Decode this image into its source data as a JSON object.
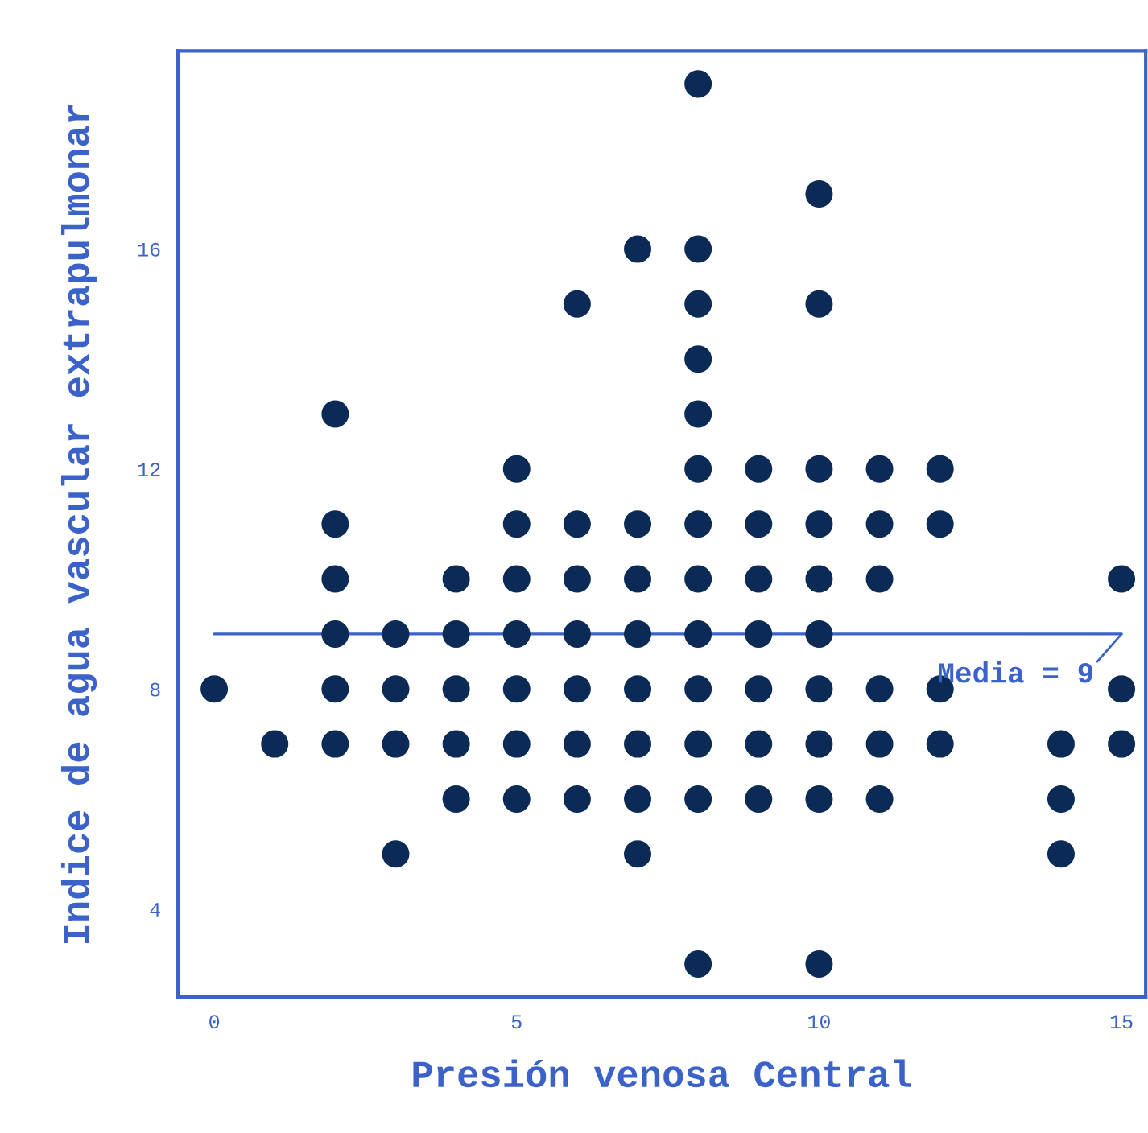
{
  "chart_data": {
    "type": "scatter",
    "xlabel": "Presión venosa Central",
    "ylabel": "Indice de agua vascular extrapulmonar",
    "x": [
      0,
      1,
      2,
      2,
      2,
      2,
      2,
      2,
      3,
      3,
      3,
      3,
      4,
      4,
      4,
      4,
      4,
      5,
      5,
      5,
      5,
      5,
      5,
      5,
      6,
      6,
      6,
      6,
      6,
      6,
      6,
      7,
      7,
      7,
      7,
      7,
      7,
      7,
      7,
      8,
      8,
      8,
      8,
      8,
      8,
      8,
      8,
      8,
      8,
      8,
      8,
      8,
      9,
      9,
      9,
      9,
      9,
      9,
      9,
      10,
      10,
      10,
      10,
      10,
      10,
      10,
      10,
      10,
      10,
      11,
      11,
      11,
      11,
      11,
      11,
      12,
      12,
      12,
      12,
      14,
      14,
      14,
      15,
      15,
      15
    ],
    "values": [
      8,
      7,
      13,
      11,
      10,
      9,
      8,
      7,
      9,
      8,
      7,
      5,
      10,
      9,
      8,
      7,
      6,
      12,
      11,
      10,
      9,
      8,
      7,
      6,
      15,
      11,
      10,
      9,
      8,
      7,
      6,
      16,
      11,
      10,
      9,
      8,
      7,
      6,
      5,
      19,
      16,
      15,
      14,
      13,
      12,
      11,
      10,
      9,
      8,
      7,
      6,
      3,
      12,
      11,
      10,
      9,
      8,
      7,
      6,
      17,
      15,
      12,
      11,
      10,
      9,
      8,
      7,
      6,
      3,
      12,
      11,
      10,
      8,
      7,
      6,
      12,
      11,
      8,
      7,
      7,
      6,
      5,
      10,
      8,
      7
    ],
    "color": "#0b2a55",
    "marker": "circle",
    "xlim": [
      -0.6,
      15.4
    ],
    "ylim": [
      2.4,
      19.6
    ],
    "xticks": [
      0,
      5,
      10,
      15
    ],
    "yticks": [
      4,
      8,
      12,
      16
    ],
    "grid": false,
    "ref_lines": [
      {
        "axis": "y",
        "value": 9,
        "label": "Media = 9",
        "color": "#3a62c8"
      }
    ]
  }
}
